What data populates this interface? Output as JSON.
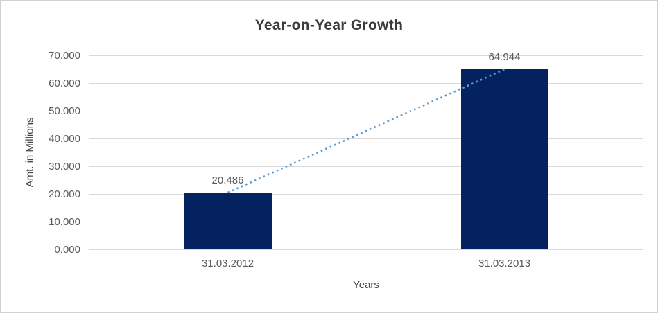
{
  "chart_data": {
    "type": "bar",
    "title": "Year-on-Year Growth",
    "xlabel": "Years",
    "ylabel": "Amt. in Millions",
    "categories": [
      "31.03.2012",
      "31.03.2013"
    ],
    "values": [
      20.486,
      64.944
    ],
    "data_labels": [
      "20.486",
      "64.944"
    ],
    "ylim": [
      0,
      70
    ],
    "ytick_labels": [
      "70.000",
      "60.000",
      "50.000",
      "40.000",
      "30.000",
      "20.000",
      "10.000",
      "0.000"
    ],
    "grid": true,
    "legend": false,
    "trendline": {
      "style": "dotted",
      "connects": "bar-tops"
    },
    "colors": {
      "bar": "#03225F",
      "trendline": "#5B9BD5",
      "gridline": "#D9D9D9",
      "title_text": "#3B3B3B",
      "axis_title_text": "#474747",
      "tick_text": "#595959",
      "border": "#D1D1D1",
      "background": "#FFFFFF"
    }
  }
}
